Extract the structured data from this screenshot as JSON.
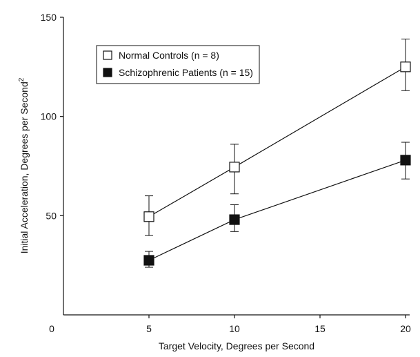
{
  "chart_data": {
    "type": "line",
    "xlabel": "Target Velocity, Degrees per Second",
    "ylabel": "Initial Acceleration, Degrees per Second",
    "ylabel_superscript": "2",
    "xlim": [
      0,
      20
    ],
    "ylim": [
      0,
      150
    ],
    "x_ticks": [
      0,
      5,
      10,
      15,
      20
    ],
    "x_tick_labels": [
      "0",
      "5",
      "10",
      "15",
      "20"
    ],
    "y_ticks": [
      50,
      100,
      150
    ],
    "y_tick_labels": [
      "50",
      "100",
      "150"
    ],
    "grid": false,
    "legend_position": "top-left",
    "x": [
      5,
      10,
      20
    ],
    "series": [
      {
        "name": "Normal Controls (n = 8)",
        "marker": "open-square",
        "color": "#111111",
        "values": [
          49.5,
          74.5,
          125
        ],
        "error_low": [
          40,
          61,
          113
        ],
        "error_high": [
          60,
          86,
          139
        ]
      },
      {
        "name": "Schizophrenic Patients (n = 15)",
        "marker": "filled-square",
        "color": "#111111",
        "values": [
          27.5,
          48,
          78
        ],
        "error_low": [
          24,
          42,
          68.5
        ],
        "error_high": [
          32,
          55.5,
          87
        ]
      }
    ]
  }
}
